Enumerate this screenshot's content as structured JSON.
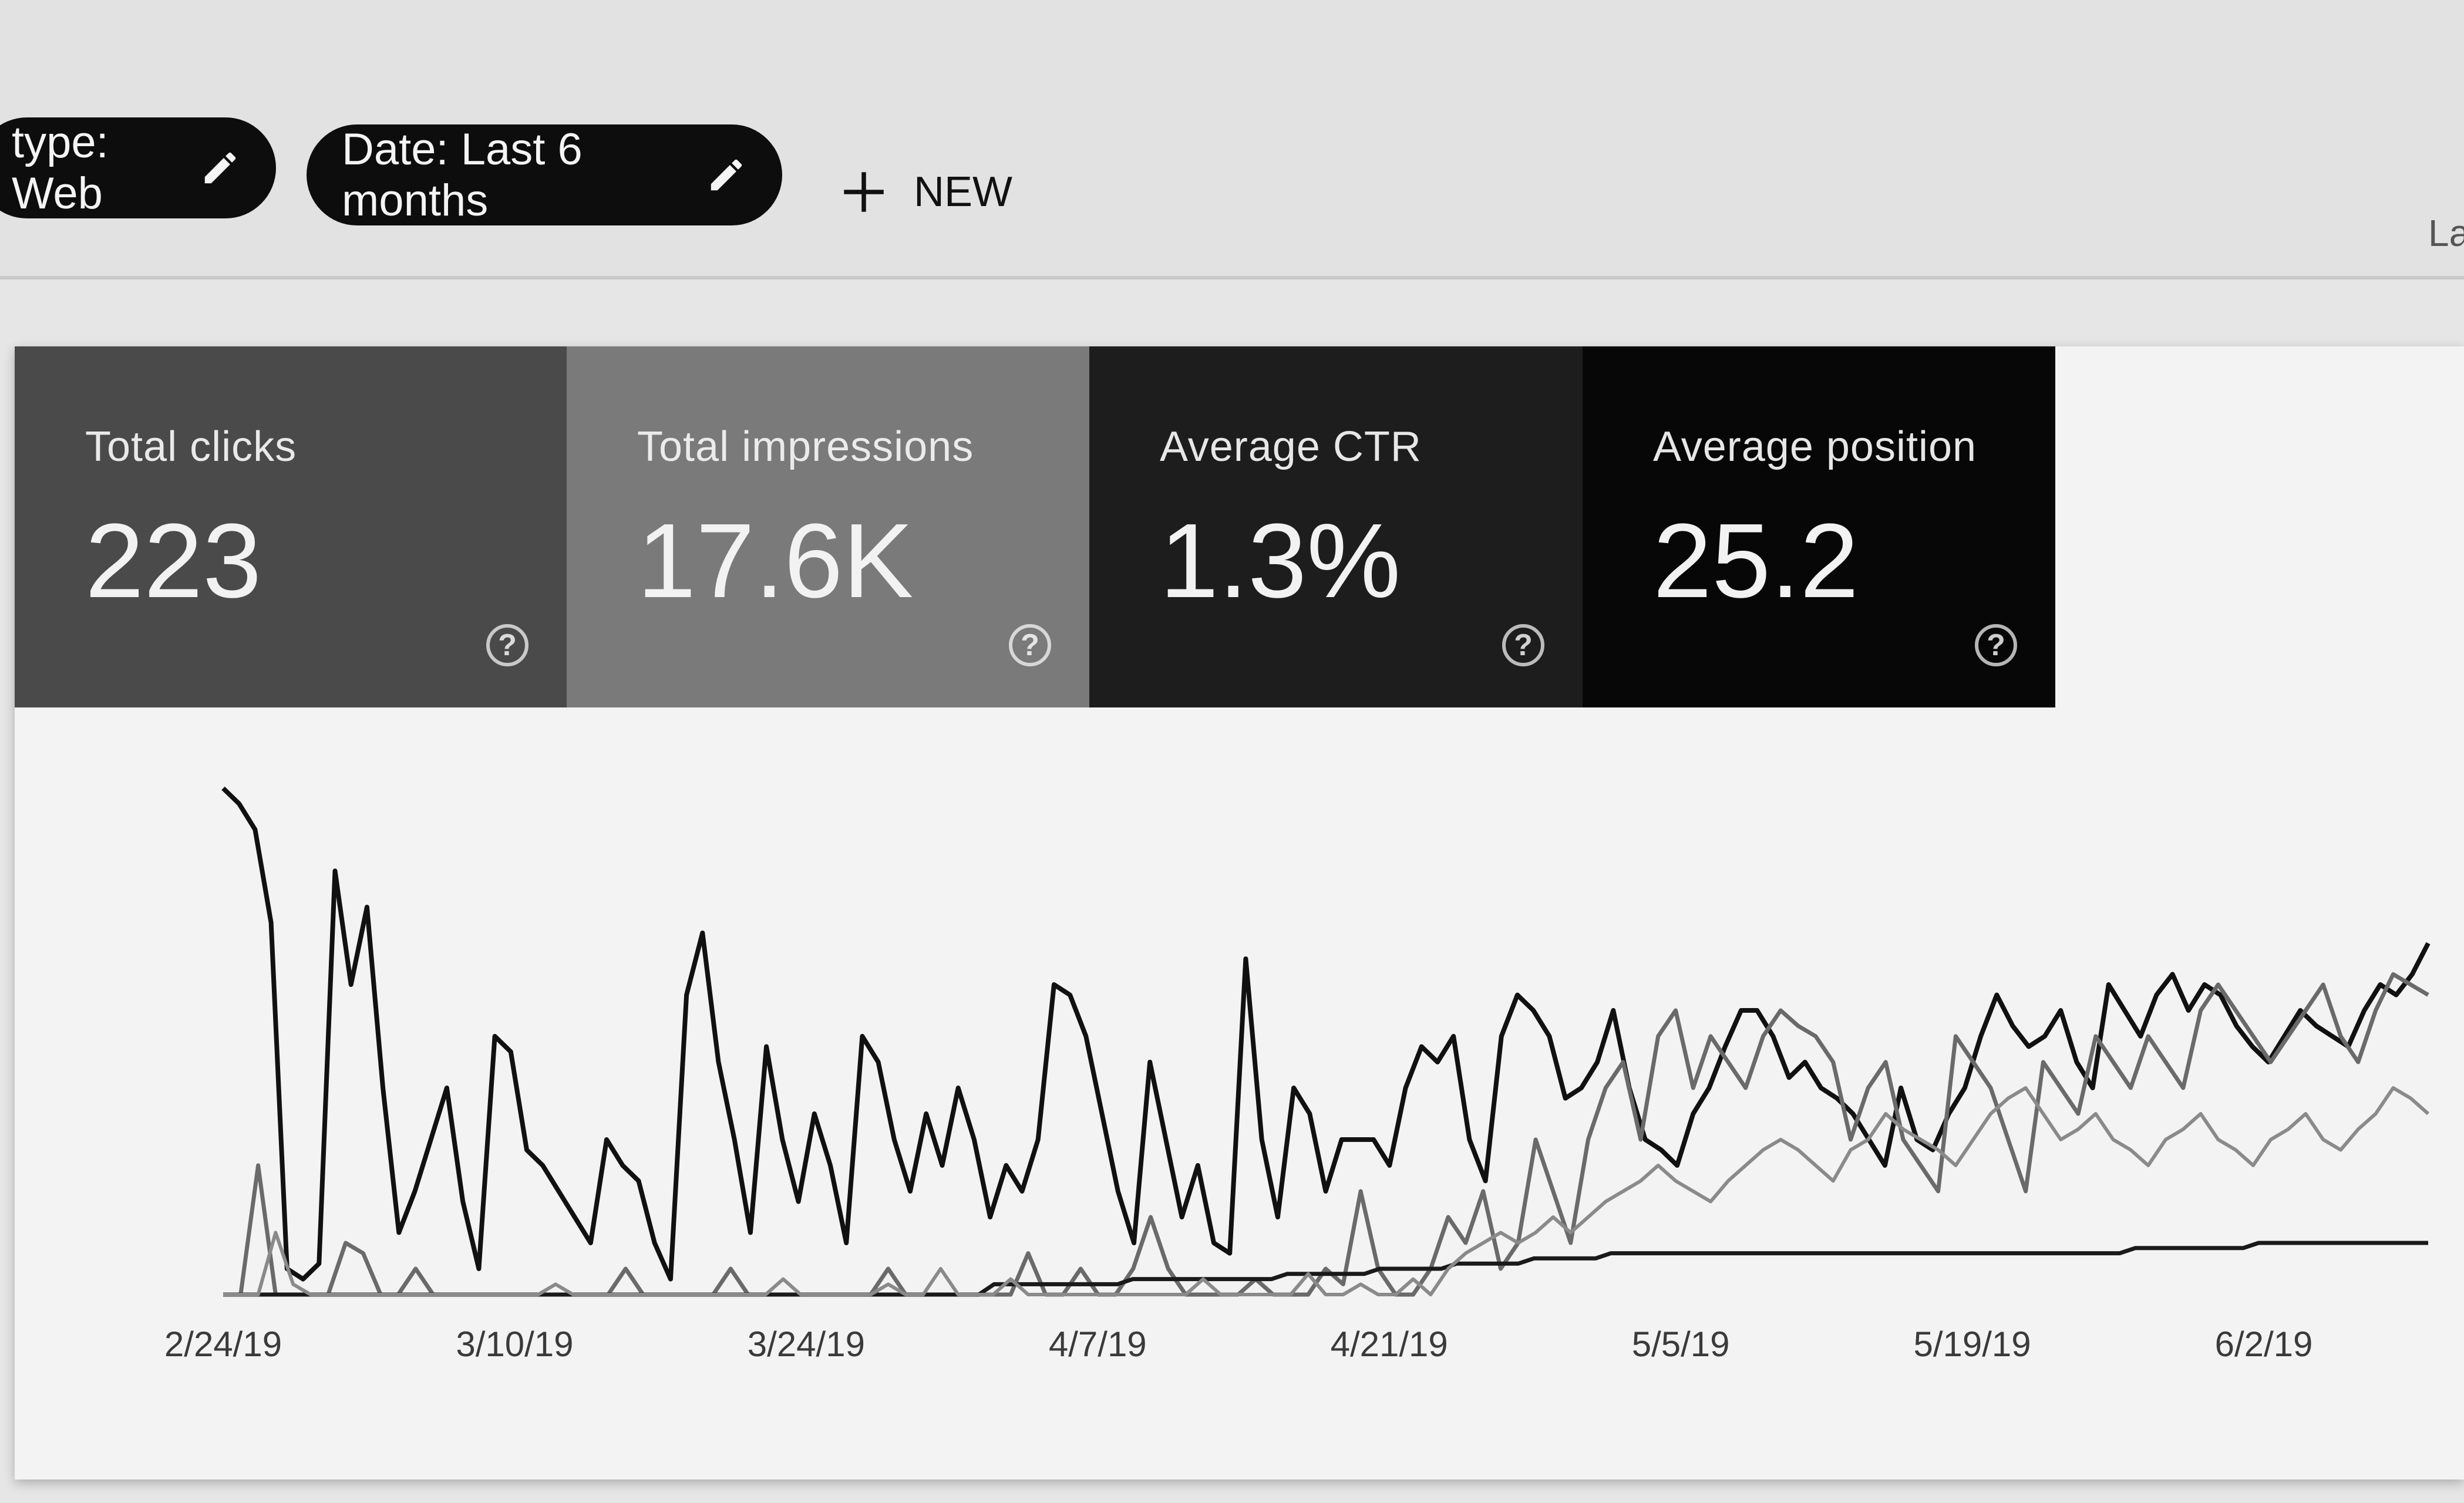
{
  "filters": [
    {
      "label": "type: Web",
      "icon": "pencil-icon"
    },
    {
      "label": "Date: Last 6 months",
      "icon": "pencil-icon"
    }
  ],
  "new_button": {
    "label": "NEW",
    "icon": "plus-icon"
  },
  "edge_text": "La",
  "metrics": [
    {
      "label": "Total clicks",
      "value": "223"
    },
    {
      "label": "Total impressions",
      "value": "17.6K"
    },
    {
      "label": "Average CTR",
      "value": "1.3%"
    },
    {
      "label": "Average position",
      "value": "25.2"
    }
  ],
  "chart_data": {
    "type": "line",
    "x_ticks": [
      "2/24/19",
      "3/10/19",
      "3/24/19",
      "4/7/19",
      "4/21/19",
      "5/5/19",
      "5/19/19",
      "6/2/19"
    ],
    "ylim": [
      0,
      100
    ],
    "series": [
      {
        "values": [
          98,
          95,
          90,
          72,
          5,
          3,
          6,
          82,
          60,
          75,
          40,
          12,
          20,
          30,
          40,
          18,
          5,
          50,
          47,
          28,
          25,
          20,
          15,
          10,
          30,
          25,
          22,
          10,
          3,
          58,
          70,
          45,
          30,
          12,
          48,
          30,
          18,
          35,
          25,
          10,
          50,
          45,
          30,
          20,
          35,
          25,
          40,
          30,
          15,
          25,
          20,
          30,
          60,
          58,
          50,
          35,
          20,
          10,
          45,
          30,
          15,
          25,
          10,
          8,
          65,
          30,
          15,
          40,
          35,
          20,
          30,
          30,
          30,
          25,
          40,
          48,
          45,
          50,
          30,
          22,
          50,
          58,
          55,
          50,
          38,
          40,
          45,
          55,
          40,
          30,
          28,
          25,
          35,
          40,
          48,
          55,
          55,
          50,
          42,
          45,
          40,
          38,
          35,
          30,
          25,
          40,
          30,
          28,
          35,
          40,
          50,
          58,
          52,
          48,
          50,
          55,
          45,
          40,
          60,
          55,
          50,
          58,
          62,
          55,
          60,
          58,
          52,
          48,
          45,
          50,
          55,
          52,
          50,
          48,
          55,
          60,
          58,
          62,
          68
        ]
      },
      {
        "values": [
          0,
          0,
          25,
          0,
          0,
          0,
          0,
          10,
          8,
          0,
          0,
          5,
          0,
          0,
          0,
          0,
          0,
          0,
          0,
          0,
          0,
          0,
          0,
          5,
          0,
          0,
          0,
          0,
          0,
          5,
          0,
          0,
          0,
          0,
          0,
          0,
          0,
          0,
          5,
          0,
          0,
          0,
          0,
          0,
          0,
          0,
          8,
          0,
          0,
          5,
          0,
          0,
          5,
          15,
          5,
          0,
          0,
          0,
          0,
          3,
          0,
          0,
          0,
          5,
          2,
          20,
          5,
          0,
          0,
          5,
          15,
          10,
          20,
          5,
          10,
          30,
          20,
          10,
          30,
          40,
          45,
          30,
          50,
          55,
          40,
          50,
          45,
          40,
          50,
          55,
          52,
          50,
          45,
          30,
          40,
          45,
          30,
          25,
          20,
          50,
          45,
          40,
          30,
          20,
          45,
          40,
          35,
          50,
          45,
          40,
          50,
          45,
          40,
          55,
          60,
          55,
          50,
          45,
          50,
          55,
          60,
          50,
          45,
          55,
          62,
          60,
          58
        ]
      },
      {
        "values": [
          0,
          0,
          0,
          0,
          0,
          0,
          0,
          0,
          0,
          0,
          0,
          0,
          0,
          0,
          0,
          0,
          0,
          0,
          0,
          0,
          0,
          0,
          0,
          0,
          0,
          0,
          0,
          0,
          0,
          0,
          0,
          0,
          0,
          0,
          0,
          0,
          0,
          0,
          0,
          0,
          0,
          0,
          0,
          0,
          0,
          0,
          0,
          0,
          0,
          0,
          2,
          2,
          2,
          2,
          2,
          2,
          2,
          2,
          2,
          3,
          3,
          3,
          3,
          3,
          3,
          3,
          3,
          3,
          3,
          4,
          4,
          4,
          4,
          4,
          4,
          5,
          5,
          5,
          5,
          5,
          6,
          6,
          6,
          6,
          6,
          7,
          7,
          7,
          7,
          7,
          8,
          8,
          8,
          8,
          8,
          8,
          8,
          8,
          8,
          8,
          8,
          8,
          8,
          8,
          8,
          8,
          8,
          8,
          8,
          8,
          8,
          8,
          8,
          8,
          8,
          8,
          8,
          8,
          8,
          8,
          8,
          8,
          8,
          8,
          9,
          9,
          9,
          9,
          9,
          9,
          9,
          9,
          10,
          10,
          10,
          10,
          10,
          10,
          10,
          10,
          10,
          10,
          10,
          10
        ]
      },
      {
        "values": [
          0,
          0,
          0,
          12,
          2,
          0,
          0,
          0,
          0,
          0,
          0,
          0,
          0,
          0,
          0,
          0,
          0,
          0,
          0,
          2,
          0,
          0,
          0,
          0,
          0,
          0,
          0,
          0,
          0,
          0,
          0,
          0,
          3,
          0,
          0,
          0,
          0,
          0,
          2,
          0,
          0,
          5,
          0,
          0,
          0,
          3,
          0,
          0,
          0,
          0,
          0,
          0,
          0,
          0,
          0,
          0,
          3,
          0,
          0,
          0,
          0,
          0,
          4,
          0,
          0,
          2,
          0,
          0,
          3,
          0,
          5,
          8,
          10,
          12,
          10,
          12,
          15,
          12,
          15,
          18,
          20,
          22,
          25,
          22,
          20,
          18,
          22,
          25,
          28,
          30,
          28,
          25,
          22,
          28,
          30,
          35,
          32,
          30,
          28,
          25,
          30,
          35,
          38,
          40,
          35,
          30,
          32,
          35,
          30,
          28,
          25,
          30,
          32,
          35,
          30,
          28,
          25,
          30,
          32,
          35,
          30,
          28,
          32,
          35,
          40,
          38,
          35
        ]
      }
    ]
  }
}
